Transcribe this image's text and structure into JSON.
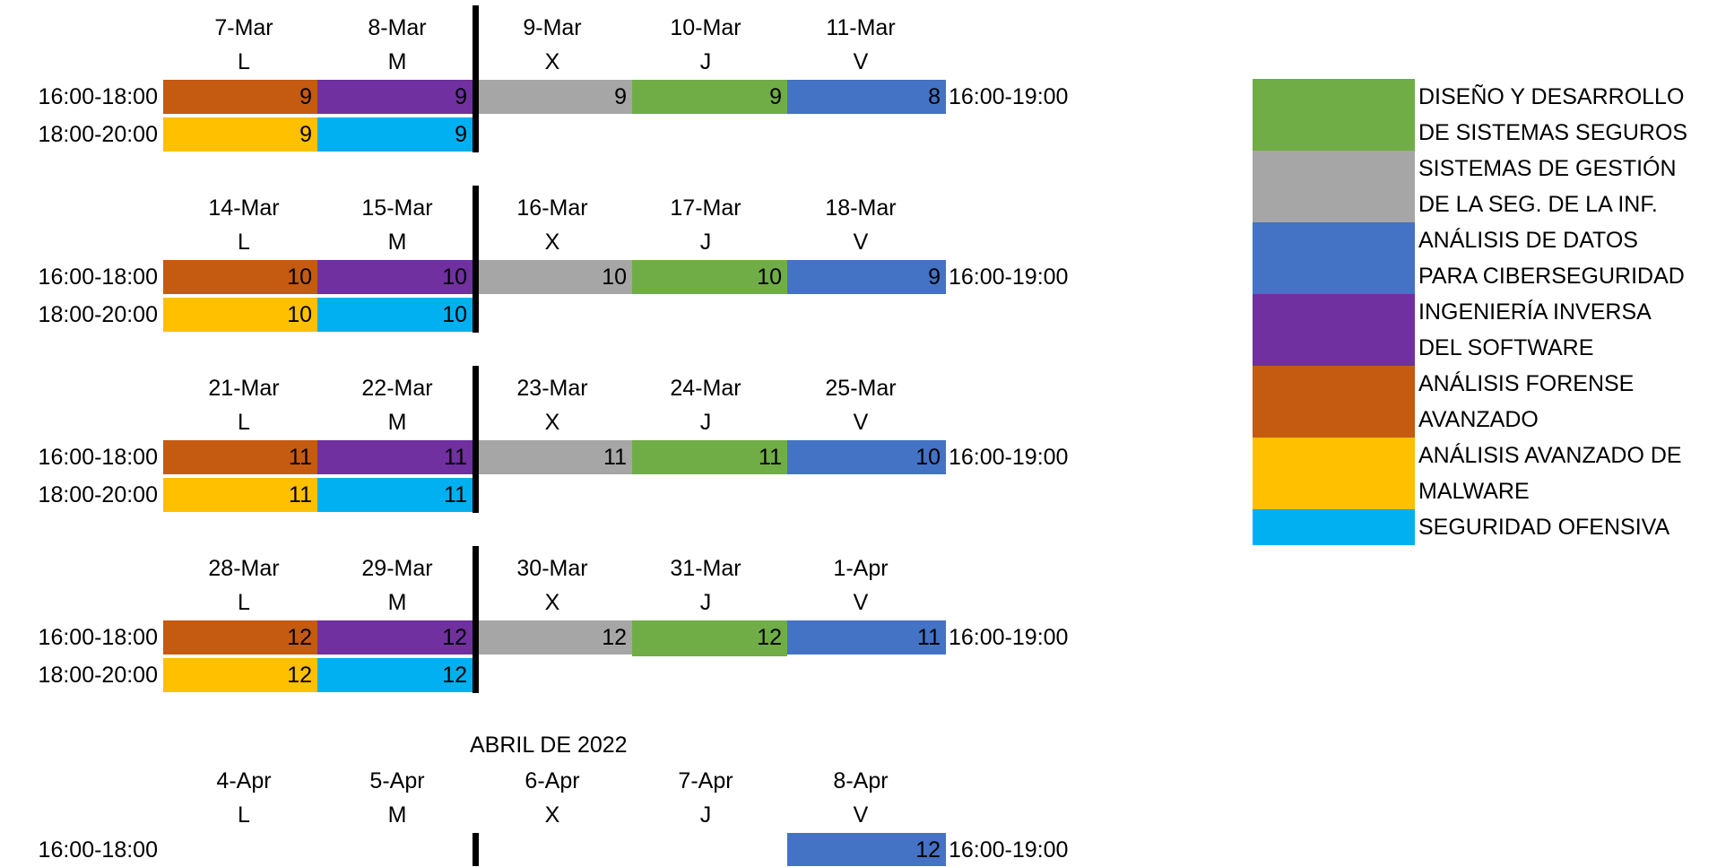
{
  "colors": {
    "forense": "#C55A11",
    "ingenieria": "#7030A0",
    "gestion": "#A6A6A6",
    "diseno": "#70AD47",
    "datos": "#4472C4",
    "malware": "#FFC000",
    "ofensiva": "#00B0F0"
  },
  "weeks": [
    {
      "dates": [
        "7-Mar",
        "8-Mar",
        "9-Mar",
        "10-Mar",
        "11-Mar"
      ],
      "days": [
        "L",
        "M",
        "X",
        "J",
        "V"
      ],
      "time_left_1": "16:00-18:00",
      "time_left_2": "18:00-20:00",
      "time_right": "16:00-19:00",
      "row1": [
        "9",
        "9",
        "9",
        "9",
        "8"
      ],
      "row2": [
        "9",
        "9"
      ]
    },
    {
      "dates": [
        "14-Mar",
        "15-Mar",
        "16-Mar",
        "17-Mar",
        "18-Mar"
      ],
      "days": [
        "L",
        "M",
        "X",
        "J",
        "V"
      ],
      "time_left_1": "16:00-18:00",
      "time_left_2": "18:00-20:00",
      "time_right": "16:00-19:00",
      "row1": [
        "10",
        "10",
        "10",
        "10",
        "9"
      ],
      "row2": [
        "10",
        "10"
      ]
    },
    {
      "dates": [
        "21-Mar",
        "22-Mar",
        "23-Mar",
        "24-Mar",
        "25-Mar"
      ],
      "days": [
        "L",
        "M",
        "X",
        "J",
        "V"
      ],
      "time_left_1": "16:00-18:00",
      "time_left_2": "18:00-20:00",
      "time_right": "16:00-19:00",
      "row1": [
        "11",
        "11",
        "11",
        "11",
        "10"
      ],
      "row2": [
        "11",
        "11"
      ]
    },
    {
      "dates": [
        "28-Mar",
        "29-Mar",
        "30-Mar",
        "31-Mar",
        "1-Apr"
      ],
      "days": [
        "L",
        "M",
        "X",
        "J",
        "V"
      ],
      "time_left_1": "16:00-18:00",
      "time_left_2": "18:00-20:00",
      "time_right": "16:00-19:00",
      "row1": [
        "12",
        "12",
        "12",
        "12",
        "11"
      ],
      "row2": [
        "12",
        "12"
      ]
    }
  ],
  "april": {
    "month_label": "ABRIL DE 2022",
    "dates": [
      "4-Apr",
      "5-Apr",
      "6-Apr",
      "7-Apr",
      "8-Apr"
    ],
    "days": [
      "L",
      "M",
      "X",
      "J",
      "V"
    ],
    "time_left_1": "16:00-18:00",
    "time_right": "16:00-19:00",
    "friday_value": "12"
  },
  "legend": [
    {
      "line1": "DISEÑO Y DESARROLLO",
      "line2": "DE SISTEMAS SEGUROS",
      "color": "#70AD47"
    },
    {
      "line1": "SISTEMAS DE GESTIÓN",
      "line2": "DE LA SEG. DE LA INF.",
      "color": "#A6A6A6"
    },
    {
      "line1": "ANÁLISIS DE DATOS",
      "line2": "PARA CIBERSEGURIDAD",
      "color": "#4472C4"
    },
    {
      "line1": "INGENIERÍA INVERSA",
      "line2": "DEL SOFTWARE",
      "color": "#7030A0"
    },
    {
      "line1": "ANÁLISIS FORENSE",
      "line2": "AVANZADO",
      "color": "#C55A11"
    },
    {
      "line1": "ANÁLISIS AVANZADO DE",
      "line2": "MALWARE",
      "color": "#FFC000"
    },
    {
      "line1": "SEGURIDAD OFENSIVA",
      "line2": "",
      "color": "#00B0F0"
    }
  ]
}
